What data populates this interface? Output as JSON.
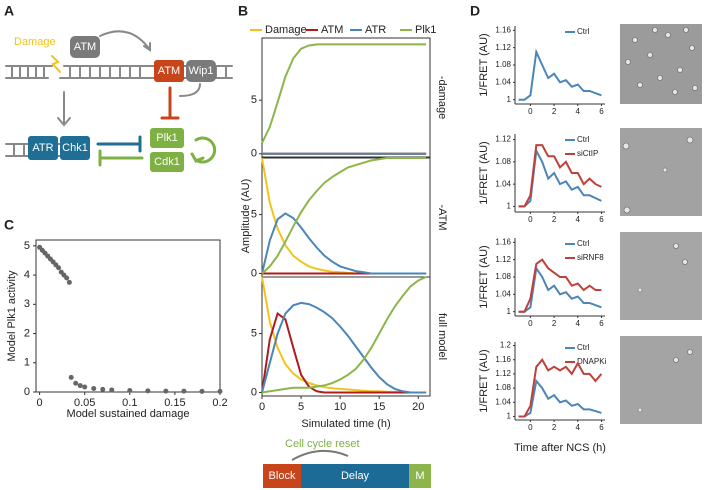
{
  "panel_labels": [
    "A",
    "B",
    "C",
    "D"
  ],
  "diagram": {
    "damage": "Damage",
    "atm": "ATM",
    "atm_active": "ATM",
    "wip1": "Wip1",
    "atr": "ATR",
    "chk1": "Chk1",
    "plk1": "Plk1",
    "cdk1": "Cdk1"
  },
  "timeline": {
    "title": "Cell cycle reset",
    "phases": [
      "Block",
      "Delay",
      "M"
    ]
  },
  "chart_data": [
    {
      "type": "scatter",
      "xlabel": "Model sustained damage",
      "ylabel": "Model Plk1 activity",
      "color": "#666666",
      "x": [
        0,
        0.003,
        0.006,
        0.009,
        0.012,
        0.015,
        0.018,
        0.021,
        0.024,
        0.027,
        0.03,
        0.033,
        0.035,
        0.04,
        0.045,
        0.05,
        0.06,
        0.07,
        0.08,
        0.1,
        0.12,
        0.14,
        0.16,
        0.18,
        0.2
      ],
      "values": [
        4.95,
        4.85,
        4.75,
        4.65,
        4.55,
        4.45,
        4.35,
        4.25,
        4.1,
        4.0,
        3.9,
        3.75,
        0.5,
        0.3,
        0.22,
        0.17,
        0.12,
        0.09,
        0.07,
        0.05,
        0.04,
        0.03,
        0.03,
        0.02,
        0.02
      ],
      "xlim": [
        -0.004,
        0.2
      ],
      "xticks": [
        0,
        0.05,
        0.1,
        0.15,
        0.2
      ],
      "ylim": [
        0,
        5.2
      ],
      "yticks": [
        0,
        1,
        2,
        3,
        4,
        5
      ]
    },
    {
      "type": "line",
      "xlabel": "Simulated time (h)",
      "ylabel": "Amplitude (AU)",
      "series": [
        {
          "name": "Damage",
          "color": "#f2c41a"
        },
        {
          "name": "ATM",
          "color": "#b01c1c"
        },
        {
          "name": "ATR",
          "color": "#4a86b8"
        },
        {
          "name": "Plk1",
          "color": "#8db54b"
        }
      ],
      "x": [
        0,
        1,
        2,
        3,
        4,
        5,
        6,
        7,
        8,
        9,
        10,
        11,
        12,
        13,
        14,
        15,
        16,
        17,
        18,
        19,
        20,
        21
      ],
      "xlim": [
        0,
        21.5
      ],
      "xticks": [
        0,
        5,
        10,
        15,
        20
      ],
      "panels": [
        {
          "label": "-damage",
          "ylim": [
            -0.3,
            10.8
          ],
          "yticks": [
            0,
            5
          ],
          "values": [
            [
              0,
              0,
              0,
              0,
              0,
              0,
              0,
              0,
              0,
              0,
              0,
              0,
              0,
              0,
              0,
              0,
              0,
              0,
              0,
              0,
              0,
              0
            ],
            [
              0,
              0,
              0,
              0,
              0,
              0,
              0,
              0,
              0,
              0,
              0,
              0,
              0,
              0,
              0,
              0,
              0,
              0,
              0,
              0,
              0,
              0
            ],
            [
              0,
              0,
              0,
              0,
              0,
              0,
              0,
              0,
              0,
              0,
              0,
              0,
              0,
              0,
              0,
              0,
              0,
              0,
              0,
              0,
              0,
              0
            ],
            [
              1,
              2.5,
              4.8,
              7.2,
              8.9,
              9.8,
              10.1,
              10.2,
              10.2,
              10.2,
              10.2,
              10.2,
              10.2,
              10.2,
              10.2,
              10.2,
              10.2,
              10.2,
              10.2,
              10.2,
              10.2,
              10.2
            ]
          ]
        },
        {
          "label": "-ATM",
          "ylim": [
            -0.3,
            9.8
          ],
          "yticks": [
            0,
            5
          ],
          "values": [
            [
              9.8,
              6,
              3.8,
              2.4,
              1.5,
              1,
              0.6,
              0.4,
              0.25,
              0.15,
              0.1,
              0.05,
              0,
              0,
              0,
              0,
              0,
              0,
              0,
              0,
              0,
              0
            ],
            [
              0,
              0,
              0,
              0,
              0,
              0,
              0,
              0,
              0,
              0,
              0,
              0,
              0,
              0,
              0,
              0,
              0,
              0,
              0,
              0,
              0,
              0
            ],
            [
              0,
              2.8,
              4.6,
              5.1,
              4.7,
              3.9,
              3,
              2.2,
              1.5,
              1,
              0.6,
              0.4,
              0.2,
              0.1,
              0,
              0,
              0,
              0,
              0,
              0,
              0,
              0
            ],
            [
              0,
              0.6,
              1.5,
              2.7,
              4,
              5.2,
              6.2,
              7,
              7.7,
              8.2,
              8.6,
              9,
              9.2,
              9.4,
              9.6,
              9.7,
              9.8,
              9.8,
              9.8,
              9.8,
              9.8,
              9.8
            ]
          ]
        },
        {
          "label": "full model",
          "ylim": [
            -0.3,
            9.8
          ],
          "yticks": [
            0,
            5
          ],
          "values": [
            [
              9.8,
              6,
              3.8,
              2.4,
              1.6,
              1.1,
              0.8,
              0.6,
              0.45,
              0.35,
              0.3,
              0.25,
              0.2,
              0.15,
              0.1,
              0.1,
              0.05,
              0.05,
              0,
              0,
              0,
              0
            ],
            [
              0,
              4.5,
              6.7,
              6.2,
              3.8,
              1.5,
              0.5,
              0.1,
              0,
              0,
              0,
              0,
              0,
              0,
              0,
              0,
              0,
              0,
              0,
              0,
              0,
              0
            ],
            [
              0,
              2.5,
              5,
              6.7,
              7.4,
              7.6,
              7.5,
              7.2,
              6.8,
              6.3,
              5.6,
              4.8,
              3.9,
              3,
              2.1,
              1.3,
              0.7,
              0.3,
              0.1,
              0,
              0,
              0
            ],
            [
              0,
              0.1,
              0.2,
              0.3,
              0.4,
              0.4,
              0.4,
              0.5,
              0.6,
              0.8,
              1.1,
              1.5,
              2,
              2.8,
              3.8,
              5,
              6.2,
              7.3,
              8.2,
              9,
              9.5,
              9.8
            ]
          ]
        }
      ]
    },
    {
      "type": "line",
      "xlabel": "Time after NCS (h)",
      "ylabel": "1/FRET (AU)",
      "x": [
        -1,
        -0.5,
        0,
        0.5,
        1,
        1.5,
        2,
        2.5,
        3,
        3.5,
        4,
        4.5,
        5,
        5.5,
        6
      ],
      "xlim": [
        -1.3,
        6.3
      ],
      "xticks": [
        0,
        2,
        4,
        6
      ],
      "panels": [
        {
          "ylim": [
            0.99,
            1.17
          ],
          "yticks": [
            1,
            1.04,
            1.08,
            1.12,
            1.16
          ],
          "series": [
            {
              "name": "Ctrl",
              "color": "#4a86b8",
              "values": [
                1,
                1,
                1.01,
                1.11,
                1.08,
                1.05,
                1.06,
                1.04,
                1.045,
                1.03,
                1.035,
                1.02,
                1.02,
                1.015,
                1.01
              ]
            }
          ]
        },
        {
          "ylim": [
            0.99,
            1.13
          ],
          "yticks": [
            1,
            1.04,
            1.08,
            1.12
          ],
          "series": [
            {
              "name": "Ctrl",
              "color": "#4a86b8",
              "values": [
                1,
                1,
                1.01,
                1.1,
                1.08,
                1.05,
                1.06,
                1.04,
                1.045,
                1.03,
                1.035,
                1.02,
                1.02,
                1.015,
                1.01
              ]
            },
            {
              "name": "siCtIP",
              "color": "#c0403a",
              "values": [
                1,
                1,
                1.02,
                1.11,
                1.11,
                1.09,
                1.09,
                1.07,
                1.08,
                1.06,
                1.06,
                1.04,
                1.05,
                1.04,
                1.035
              ]
            }
          ]
        },
        {
          "ylim": [
            0.99,
            1.17
          ],
          "yticks": [
            1,
            1.04,
            1.08,
            1.12,
            1.16
          ],
          "series": [
            {
              "name": "Ctrl",
              "color": "#4a86b8",
              "values": [
                1,
                1,
                1.01,
                1.1,
                1.08,
                1.05,
                1.06,
                1.04,
                1.045,
                1.03,
                1.035,
                1.02,
                1.02,
                1.015,
                1.01
              ]
            },
            {
              "name": "siRNF8",
              "color": "#c0403a",
              "values": [
                1,
                1,
                1.03,
                1.11,
                1.12,
                1.1,
                1.09,
                1.08,
                1.08,
                1.06,
                1.065,
                1.05,
                1.06,
                1.05,
                1.05
              ]
            }
          ]
        },
        {
          "ylim": [
            0.99,
            1.21
          ],
          "yticks": [
            1,
            1.04,
            1.08,
            1.12,
            1.16,
            1.2
          ],
          "series": [
            {
              "name": "Ctrl",
              "color": "#4a86b8",
              "values": [
                1,
                1,
                1.01,
                1.1,
                1.08,
                1.05,
                1.06,
                1.04,
                1.045,
                1.03,
                1.035,
                1.02,
                1.02,
                1.015,
                1.01
              ]
            },
            {
              "name": "DNAPKi",
              "color": "#c0403a",
              "values": [
                1,
                1,
                1.03,
                1.14,
                1.16,
                1.13,
                1.14,
                1.13,
                1.14,
                1.12,
                1.15,
                1.12,
                1.12,
                1.1,
                1.12
              ]
            }
          ]
        }
      ]
    }
  ]
}
